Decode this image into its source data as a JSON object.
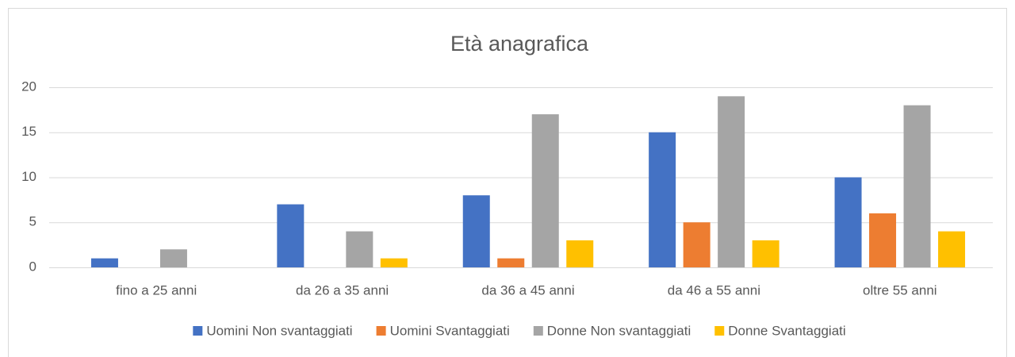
{
  "chart_data": {
    "type": "bar",
    "title": "Età anagrafica",
    "categories": [
      "fino a 25 anni",
      "da 26 a 35 anni",
      "da 36 a 45 anni",
      "da 46 a 55 anni",
      "oltre 55 anni"
    ],
    "series": [
      {
        "name": "Uomini Non svantaggiati",
        "color": "#4472c4",
        "values": [
          1,
          7,
          8,
          15,
          10
        ]
      },
      {
        "name": "Uomini Svantaggiati",
        "color": "#ed7d31",
        "values": [
          0,
          0,
          1,
          5,
          6
        ]
      },
      {
        "name": "Donne Non svantaggiati",
        "color": "#a5a5a5",
        "values": [
          2,
          4,
          17,
          19,
          18
        ]
      },
      {
        "name": "Donne Svantaggiati",
        "color": "#ffc000",
        "values": [
          0,
          1,
          3,
          3,
          4
        ]
      }
    ],
    "ylim": [
      0,
      20
    ],
    "yticks": [
      0,
      5,
      10,
      15,
      20
    ],
    "grid": true,
    "legend": "bottom"
  }
}
